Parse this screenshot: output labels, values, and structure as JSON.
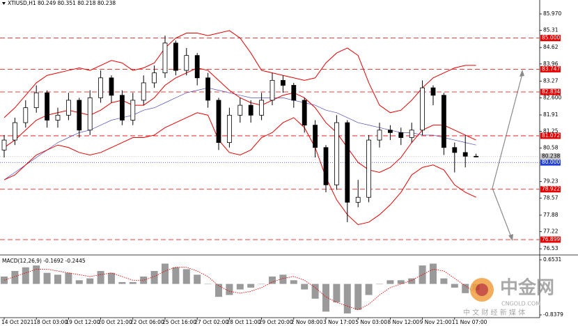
{
  "chart_data": [
    {
      "type": "candlestick",
      "title": "XTIUSD,H1  80.249 80.351 80.218 80.238",
      "categories": [
        "14 Oct 2021",
        null,
        null,
        "18 Oct 03:00",
        null,
        null,
        "19 Oct 12:00",
        null,
        null,
        "20 Oct 21:00",
        null,
        null,
        "22 Oct 06:00",
        null,
        null,
        "25 Oct 16:00",
        null,
        null,
        "27 Oct 02:00",
        null,
        null,
        "28 Oct 11:00",
        null,
        null,
        "29 Oct 20:00",
        null,
        null,
        "2 Nov 08:00",
        null,
        null,
        "3 Nov 17:00",
        null,
        null,
        "5 Nov 03:00",
        null,
        null,
        "8 Nov 12:00",
        null,
        null,
        "9 Nov 21:00",
        null,
        null,
        "11 Nov 07:00",
        null,
        null
      ],
      "open": [
        80.5,
        80.9,
        81.6,
        82.2,
        82.8,
        81.7,
        81.9,
        82.5,
        81.3,
        82.6,
        83.4,
        82.7,
        81.7,
        82.5,
        83.2,
        83.6,
        84.8,
        83.7,
        84.3,
        83.4,
        82.5,
        80.8,
        81.9,
        82.3,
        81.9,
        82.5,
        83.3,
        83.1,
        82.5,
        81.5,
        80.6,
        79.1,
        81.6,
        78.4,
        78.6,
        80.9,
        81.3,
        81.2,
        81.0,
        81.3,
        83.0,
        82.7,
        80.6,
        80.4,
        80.249
      ],
      "high": [
        81.1,
        81.8,
        82.5,
        83.1,
        82.9,
        82.2,
        82.8,
        82.6,
        82.9,
        83.7,
        83.5,
        82.9,
        82.8,
        83.5,
        83.9,
        85.1,
        84.9,
        84.6,
        84.4,
        83.6,
        82.6,
        82.2,
        82.6,
        82.5,
        82.8,
        83.6,
        83.5,
        83.2,
        82.6,
        81.7,
        80.7,
        81.9,
        81.7,
        79.3,
        81.1,
        81.6,
        81.5,
        81.4,
        81.6,
        83.3,
        83.1,
        82.8,
        80.8,
        81.1,
        80.351
      ],
      "low": [
        80.2,
        80.7,
        81.4,
        82.0,
        81.4,
        81.4,
        81.7,
        81.0,
        81.1,
        82.4,
        82.4,
        81.5,
        81.5,
        82.3,
        83.0,
        83.4,
        83.5,
        83.5,
        83.1,
        82.2,
        80.5,
        80.6,
        81.6,
        81.6,
        81.7,
        82.3,
        82.8,
        82.2,
        81.2,
        80.2,
        78.8,
        78.9,
        77.6,
        78.2,
        78.4,
        80.6,
        80.9,
        80.7,
        80.8,
        81.1,
        82.3,
        80.3,
        79.6,
        79.8,
        80.218
      ],
      "close": [
        80.9,
        81.6,
        82.2,
        82.8,
        81.7,
        81.9,
        82.5,
        81.3,
        82.6,
        83.4,
        82.7,
        81.7,
        82.5,
        83.2,
        83.6,
        84.8,
        83.7,
        84.3,
        83.4,
        82.5,
        80.8,
        81.9,
        82.3,
        81.9,
        82.5,
        83.3,
        83.1,
        82.5,
        81.5,
        80.6,
        79.1,
        81.6,
        78.4,
        78.6,
        80.9,
        81.3,
        81.2,
        81.0,
        81.3,
        83.0,
        82.7,
        80.6,
        80.4,
        80.25,
        80.238
      ],
      "bands": {
        "color": "#e60000",
        "upper": [
          81.8,
          82.2,
          82.7,
          83.2,
          83.5,
          83.6,
          83.7,
          83.8,
          83.7,
          83.9,
          84.1,
          84.0,
          83.7,
          83.8,
          84.0,
          84.6,
          85.0,
          85.2,
          85.2,
          85.1,
          85.2,
          85.3,
          85.0,
          84.4,
          83.7,
          83.6,
          83.5,
          83.4,
          83.3,
          83.4,
          84.0,
          84.4,
          84.6,
          84.3,
          83.2,
          82.3,
          82.0,
          82.1,
          82.5,
          83.0,
          83.4,
          83.6,
          83.8,
          83.9,
          83.9
        ],
        "middle": [
          80.6,
          80.9,
          81.3,
          81.7,
          81.9,
          82.0,
          82.1,
          82.0,
          81.9,
          82.1,
          82.4,
          82.5,
          82.3,
          82.3,
          82.6,
          83.1,
          83.4,
          83.6,
          83.8,
          83.7,
          83.3,
          82.9,
          82.6,
          82.4,
          82.3,
          82.5,
          82.7,
          82.8,
          82.6,
          82.2,
          81.6,
          81.2,
          80.6,
          80.0,
          79.7,
          79.6,
          79.8,
          80.2,
          80.8,
          81.3,
          81.5,
          81.5,
          81.3,
          81.1,
          80.9
        ],
        "lower": [
          79.3,
          79.5,
          79.9,
          80.3,
          80.5,
          80.7,
          80.6,
          80.4,
          80.3,
          80.4,
          80.6,
          80.8,
          81.0,
          81.0,
          81.1,
          81.4,
          81.6,
          81.8,
          82.0,
          81.9,
          80.9,
          80.4,
          80.3,
          80.5,
          81.0,
          81.2,
          81.6,
          81.8,
          81.4,
          80.6,
          79.4,
          78.5,
          77.9,
          77.5,
          77.6,
          77.9,
          78.3,
          78.8,
          79.5,
          79.8,
          79.9,
          79.7,
          79.1,
          78.8,
          78.6
        ]
      },
      "ma": {
        "color": "#4d4dc0",
        "values": [
          79.3,
          79.6,
          79.9,
          80.2,
          80.5,
          80.8,
          81.0,
          81.2,
          81.3,
          81.5,
          81.7,
          81.8,
          81.9,
          82.1,
          82.2,
          82.4,
          82.6,
          82.8,
          82.9,
          83.0,
          82.9,
          82.8,
          82.7,
          82.6,
          82.6,
          82.6,
          82.6,
          82.5,
          82.4,
          82.3,
          82.1,
          82.0,
          81.8,
          81.6,
          81.5,
          81.4,
          81.3,
          81.2,
          81.2,
          81.1,
          81.1,
          81.0,
          80.9,
          80.8,
          80.7
        ]
      },
      "ylim": [
        76.31,
        86.39
      ],
      "yticks": [
        {
          "value": 85.97,
          "label": "85.970"
        },
        85.31,
        84.62,
        83.96,
        83.27,
        {
          "value": 82.6,
          "label": "82.600"
        },
        81.91,
        81.25,
        80.58,
        79.23,
        78.57,
        77.88,
        77.22,
        76.53
      ],
      "levels": [
        {
          "value": 85,
          "label": "85.000"
        },
        83.747,
        82.834,
        81.072,
        78.922,
        76.899
      ],
      "level_color": "#e60000",
      "reference": {
        "value": 80,
        "label": "80.000",
        "color": "#1f3fd8"
      },
      "last": {
        "value": 80.238,
        "label": "80.238"
      }
    },
    {
      "type": "macd",
      "title": "MACD(12,26,9) -0.1692 -0.2445",
      "values": [
        0.2,
        0.35,
        0.45,
        0.5,
        0.3,
        0.25,
        0.3,
        0.1,
        0.15,
        0.35,
        0.3,
        0.05,
        0.05,
        0.2,
        0.35,
        0.55,
        0.45,
        0.4,
        0.25,
        0.0,
        -0.35,
        -0.3,
        -0.15,
        -0.1,
        0.0,
        0.2,
        0.25,
        0.1,
        -0.15,
        -0.4,
        -0.75,
        -0.5,
        -0.8,
        -0.7,
        -0.3,
        0.0,
        0.1,
        0.1,
        0.15,
        0.5,
        0.55,
        0.15,
        -0.1,
        -0.25,
        -0.1692
      ],
      "signal": [
        0.1,
        0.2,
        0.3,
        0.4,
        0.4,
        0.35,
        0.3,
        0.25,
        0.2,
        0.25,
        0.3,
        0.2,
        0.1,
        0.1,
        0.2,
        0.35,
        0.45,
        0.45,
        0.35,
        0.2,
        -0.05,
        -0.2,
        -0.25,
        -0.2,
        -0.1,
        0.05,
        0.15,
        0.2,
        0.1,
        -0.1,
        -0.35,
        -0.5,
        -0.6,
        -0.7,
        -0.55,
        -0.3,
        -0.1,
        0.0,
        0.1,
        0.25,
        0.4,
        0.35,
        0.15,
        -0.05,
        -0.2445
      ],
      "color": "#9a9a9a",
      "signal_color": "#e60000",
      "ylim": [
        -0.894,
        0.747
      ],
      "yticks": [
        0.6531,
        -0.8379
      ]
    }
  ],
  "watermark": {
    "brand": "中金网",
    "site": "CNGOLD.COM",
    "slogan": "中 文 财 经 新 媒 体"
  }
}
